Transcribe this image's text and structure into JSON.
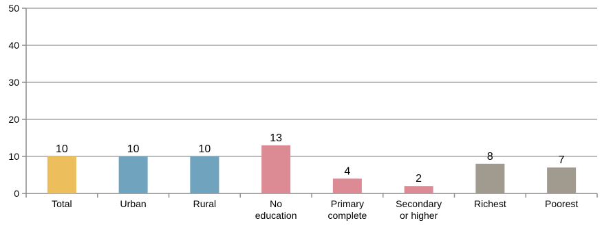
{
  "chart_data": {
    "type": "bar",
    "title": "",
    "xlabel": "",
    "ylabel": "",
    "ylim": [
      0,
      50
    ],
    "yticks": [
      0,
      10,
      20,
      30,
      40,
      50
    ],
    "grid": true,
    "categories": [
      [
        "Total"
      ],
      [
        "Urban"
      ],
      [
        "Rural"
      ],
      [
        "No",
        "education"
      ],
      [
        "Primary",
        "complete"
      ],
      [
        "Secondary",
        "or higher"
      ],
      [
        "Richest"
      ],
      [
        "Poorest"
      ]
    ],
    "values": [
      10,
      10,
      10,
      13,
      4,
      2,
      8,
      7
    ],
    "data_labels": [
      "10",
      "10",
      "10",
      "13",
      "4",
      "2",
      "8",
      "7"
    ],
    "colors": [
      "#EDBF5C",
      "#6FA3BE",
      "#6FA3BE",
      "#DC8A93",
      "#DC8A93",
      "#DC8A93",
      "#A19A8E",
      "#A19A8E"
    ],
    "gridline_color": "#A6A6A6",
    "axis_color": "#8C8C8C"
  }
}
